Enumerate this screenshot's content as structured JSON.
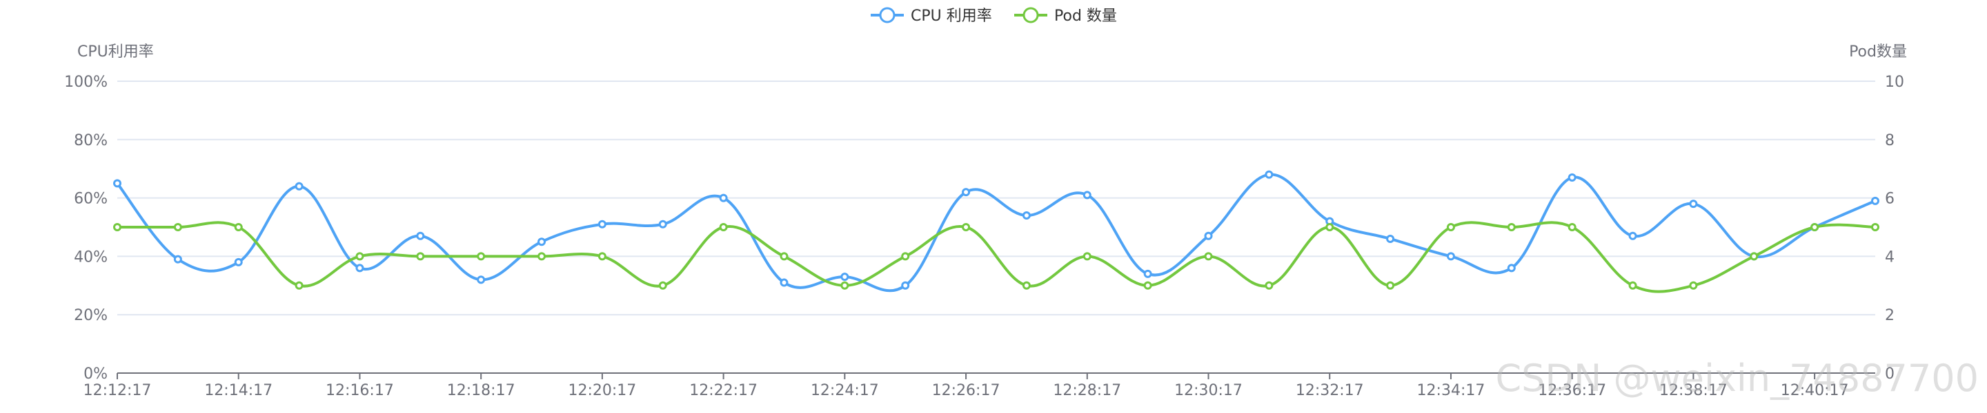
{
  "chart_data": {
    "type": "line",
    "legend_position": "top-center",
    "grid": true,
    "categories": [
      "12:12:17",
      "12:13:17",
      "12:14:17",
      "12:15:17",
      "12:16:17",
      "12:17:17",
      "12:18:17",
      "12:19:17",
      "12:20:17",
      "12:21:17",
      "12:22:17",
      "12:23:17",
      "12:24:17",
      "12:25:17",
      "12:26:17",
      "12:27:17",
      "12:28:17",
      "12:29:17",
      "12:30:17",
      "12:31:17",
      "12:32:17",
      "12:33:17",
      "12:34:17",
      "12:35:17",
      "12:36:17",
      "12:37:17",
      "12:38:17",
      "12:39:17",
      "12:40:17",
      "12:41:17"
    ],
    "x_tick_labels": [
      "12:12:17",
      "12:14:17",
      "12:16:17",
      "12:18:17",
      "12:20:17",
      "12:22:17",
      "12:24:17",
      "12:26:17",
      "12:28:17",
      "12:30:17",
      "12:32:17",
      "12:34:17",
      "12:36:17",
      "12:38:17",
      "12:40:17"
    ],
    "y_left": {
      "label": "CPU利用率",
      "range": [
        0,
        100
      ],
      "ticks": [
        "0%",
        "20%",
        "40%",
        "60%",
        "80%",
        "100%"
      ]
    },
    "y_right": {
      "label": "Pod数量",
      "range": [
        0,
        10
      ],
      "ticks": [
        "0",
        "2",
        "4",
        "6",
        "8",
        "10"
      ]
    },
    "series": [
      {
        "name": "CPU 利用率",
        "axis": "left",
        "color": "#4ea3f5",
        "values": [
          65,
          39,
          38,
          64,
          36,
          47,
          32,
          45,
          51,
          51,
          60,
          31,
          33,
          30,
          62,
          54,
          61,
          34,
          47,
          68,
          52,
          46,
          40,
          36,
          67,
          47,
          58,
          40,
          50,
          59
        ]
      },
      {
        "name": "Pod 数量",
        "axis": "right",
        "color": "#73c83f",
        "values": [
          5,
          5,
          5,
          3,
          4,
          4,
          4,
          4,
          4,
          3,
          5,
          4,
          3,
          4,
          5,
          3,
          4,
          3,
          4,
          3,
          5,
          3,
          5,
          5,
          5,
          3,
          3,
          4,
          5,
          5
        ]
      }
    ]
  },
  "watermark": "CSDN @weixin_74887700"
}
